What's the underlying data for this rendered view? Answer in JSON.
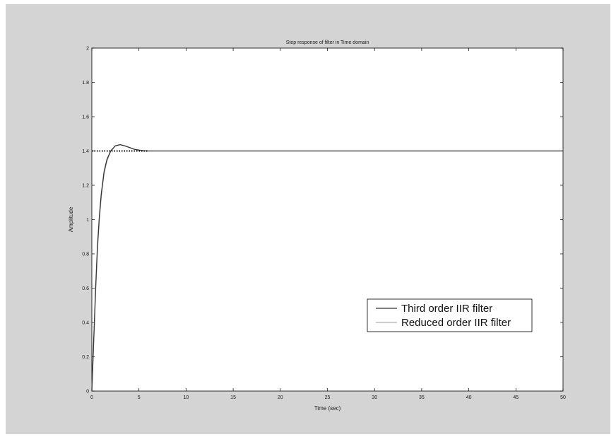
{
  "chart_data": {
    "type": "line",
    "title": "Step response of filter in Time domain",
    "xlabel": "Time (sec)",
    "ylabel": "Amplitude",
    "xlim": [
      0,
      50
    ],
    "ylim": [
      0,
      2
    ],
    "xticks": [
      0,
      5,
      10,
      15,
      20,
      25,
      30,
      35,
      40,
      45,
      50
    ],
    "yticks": [
      0,
      0.2,
      0.4,
      0.6,
      0.8,
      1,
      1.2,
      1.4,
      1.6,
      1.8,
      2
    ],
    "xtick_labels": [
      "0",
      "5",
      "10",
      "15",
      "20",
      "25",
      "30",
      "35",
      "40",
      "45",
      "50"
    ],
    "ytick_labels": [
      "0",
      "0.2",
      "0.4",
      "0.6",
      "0.8",
      "1",
      "1.2",
      "1.4",
      "1.6",
      "1.8",
      "2"
    ],
    "grid": false,
    "legend_position": "lower-right",
    "series": [
      {
        "name": "Third order IIR filter",
        "color": "#333333",
        "style": "solid",
        "x": [
          0,
          0.2,
          0.4,
          0.6,
          0.8,
          1.0,
          1.3,
          1.6,
          2.0,
          2.5,
          3.0,
          3.5,
          4.0,
          4.5,
          5.0,
          5.5,
          6.0,
          7.0,
          10,
          20,
          30,
          40,
          50
        ],
        "y": [
          0,
          0.3,
          0.6,
          0.85,
          1.02,
          1.15,
          1.28,
          1.35,
          1.4,
          1.43,
          1.437,
          1.43,
          1.42,
          1.41,
          1.405,
          1.401,
          1.4,
          1.4,
          1.4,
          1.4,
          1.4,
          1.4,
          1.4
        ]
      },
      {
        "name": "Reduced order IIR filter",
        "color": "#b0b0b0",
        "style": "solid",
        "x": [
          0,
          0.2,
          0.4,
          0.6,
          0.8,
          1.0,
          1.3,
          1.6,
          2.0,
          2.5,
          3.0,
          3.5,
          4.0,
          4.5,
          5.0,
          5.5,
          6.0,
          7.0,
          10,
          20,
          30,
          40,
          50
        ],
        "y": [
          0,
          0.28,
          0.57,
          0.82,
          1.0,
          1.13,
          1.27,
          1.34,
          1.4,
          1.43,
          1.436,
          1.43,
          1.42,
          1.41,
          1.405,
          1.401,
          1.4,
          1.4,
          1.4,
          1.4,
          1.4,
          1.4,
          1.4
        ]
      },
      {
        "color": "#000000",
        "style": "dotted",
        "x": [
          0,
          6
        ],
        "y": [
          1.4,
          1.4
        ]
      }
    ]
  }
}
